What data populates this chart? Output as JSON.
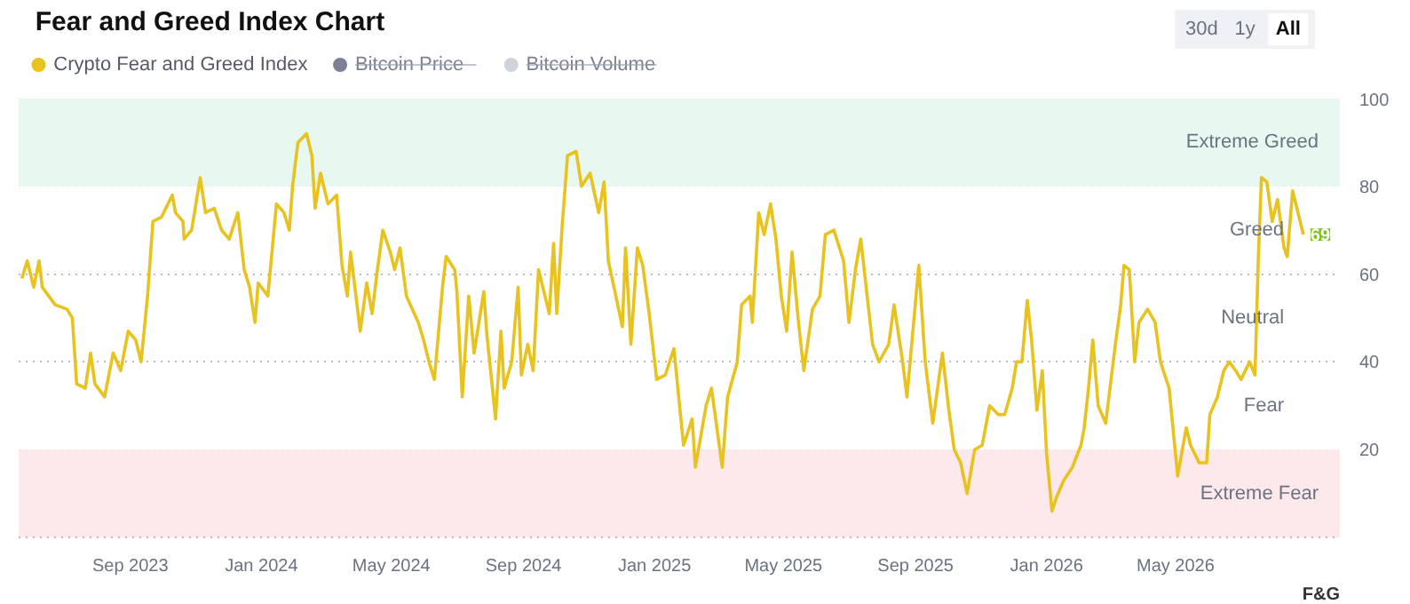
{
  "chart_data": {
    "type": "line",
    "title": "Fear and Greed Index Chart",
    "x": [
      "2023-05-23",
      "2023-05-28",
      "2023-06-03",
      "2023-06-08",
      "2023-06-11",
      "2023-06-23",
      "2023-07-04",
      "2023-07-09",
      "2023-07-13",
      "2023-07-21",
      "2023-07-26",
      "2023-07-30",
      "2023-08-08",
      "2023-08-16",
      "2023-08-23",
      "2023-08-30",
      "2023-09-06",
      "2023-09-11",
      "2023-09-17",
      "2023-09-22",
      "2023-09-30",
      "2023-10-10",
      "2023-10-13",
      "2023-10-20",
      "2023-10-21",
      "2023-10-28",
      "2023-11-05",
      "2023-11-10",
      "2023-11-18",
      "2023-11-25",
      "2023-12-02",
      "2023-12-10",
      "2023-12-16",
      "2023-12-21",
      "2023-12-26",
      "2023-12-29",
      "2024-01-07",
      "2024-01-15",
      "2024-01-22",
      "2024-01-27",
      "2024-01-30",
      "2024-02-04",
      "2024-02-12",
      "2024-02-17",
      "2024-02-20",
      "2024-02-25",
      "2024-03-03",
      "2024-03-11",
      "2024-03-16",
      "2024-03-21",
      "2024-03-24",
      "2024-04-02",
      "2024-04-08",
      "2024-04-13",
      "2024-04-18",
      "2024-04-23",
      "2024-04-30",
      "2024-05-04",
      "2024-05-09",
      "2024-05-15",
      "2024-05-26",
      "2024-05-31",
      "2024-06-05",
      "2024-06-10",
      "2024-06-18",
      "2024-06-21",
      "2024-06-29",
      "2024-07-01",
      "2024-07-06",
      "2024-07-12",
      "2024-07-17",
      "2024-07-26",
      "2024-07-29",
      "2024-08-06",
      "2024-08-11",
      "2024-08-14",
      "2024-08-21",
      "2024-08-27",
      "2024-08-30",
      "2024-09-05",
      "2024-09-10",
      "2024-09-15",
      "2024-09-25",
      "2024-09-29",
      "2024-10-02",
      "2024-10-07",
      "2024-10-12",
      "2024-10-20",
      "2024-10-25",
      "2024-11-02",
      "2024-11-10",
      "2024-11-15",
      "2024-11-19",
      "2024-11-26",
      "2024-12-02",
      "2024-12-05",
      "2024-12-10",
      "2024-12-16",
      "2024-12-21",
      "2024-12-27",
      "2025-01-03",
      "2025-01-11",
      "2025-01-19",
      "2025-01-28",
      "2025-02-05",
      "2025-02-08",
      "2025-02-18",
      "2025-02-23",
      "2025-02-28",
      "2025-03-05",
      "2025-03-10",
      "2025-03-19",
      "2025-03-23",
      "2025-03-31",
      "2025-04-02",
      "2025-04-08",
      "2025-04-13",
      "2025-04-19",
      "2025-04-24",
      "2025-04-29",
      "2025-05-04",
      "2025-05-09",
      "2025-05-15",
      "2025-05-20",
      "2025-05-28",
      "2025-06-04",
      "2025-06-09",
      "2025-06-17",
      "2025-06-26",
      "2025-07-01",
      "2025-07-07",
      "2025-07-12",
      "2025-07-17",
      "2025-07-23",
      "2025-07-29",
      "2025-08-07",
      "2025-08-12",
      "2025-08-20",
      "2025-08-24",
      "2025-09-04",
      "2025-09-10",
      "2025-09-17",
      "2025-09-26",
      "2025-10-02",
      "2025-10-07",
      "2025-10-13",
      "2025-10-19",
      "2025-10-26",
      "2025-11-02",
      "2025-11-09",
      "2025-11-17",
      "2025-11-23",
      "2025-11-30",
      "2025-12-04",
      "2025-12-09",
      "2025-12-14",
      "2025-12-18",
      "2025-12-23",
      "2025-12-28",
      "2026-01-01",
      "2026-01-06",
      "2026-01-10",
      "2026-01-17",
      "2026-01-25",
      "2026-02-02",
      "2026-02-05",
      "2026-02-09",
      "2026-02-13",
      "2026-02-18",
      "2026-02-25",
      "2026-03-01",
      "2026-03-06",
      "2026-03-11",
      "2026-03-14",
      "2026-03-19",
      "2026-03-24",
      "2026-03-28",
      "2026-04-05",
      "2026-04-12",
      "2026-04-17",
      "2026-04-25",
      "2026-05-03",
      "2026-05-11",
      "2026-05-15",
      "2026-05-23",
      "2026-05-30",
      "2026-06-02",
      "2026-06-09",
      "2026-06-15",
      "2026-06-20",
      "2026-06-26",
      "2026-07-01",
      "2026-07-09",
      "2026-07-14",
      "2026-07-17",
      "2026-07-20",
      "2026-07-25",
      "2026-07-30",
      "2026-08-04",
      "2026-08-10",
      "2026-08-13",
      "2026-08-18",
      "2026-08-23",
      "2026-08-28"
    ],
    "series": [
      {
        "name": "Crypto Fear and Greed Index",
        "color": "#e8c31f",
        "values": [
          59,
          63,
          57,
          63,
          57,
          53,
          52,
          50,
          35,
          34,
          42,
          35,
          32,
          42,
          38,
          47,
          45,
          40,
          55,
          72,
          73,
          78,
          74,
          72,
          68,
          70,
          82,
          74,
          75,
          70,
          68,
          74,
          61,
          57,
          49,
          58,
          55,
          76,
          74,
          70,
          80,
          90,
          92,
          87,
          75,
          83,
          76,
          78,
          62,
          55,
          65,
          47,
          58,
          51,
          61,
          70,
          65,
          61,
          66,
          55,
          49,
          45,
          40,
          36,
          58,
          64,
          61,
          56,
          32,
          55,
          42,
          56,
          46,
          27,
          47,
          34,
          40,
          57,
          37,
          44,
          38,
          61,
          51,
          67,
          51,
          71,
          87,
          88,
          80,
          83,
          74,
          81,
          63,
          55,
          48,
          66,
          44,
          66,
          62,
          51,
          36,
          37,
          43,
          21,
          27,
          16,
          30,
          34,
          25,
          16,
          32,
          40,
          53,
          55,
          49,
          74,
          69,
          76,
          68,
          55,
          47,
          65,
          49,
          38,
          52,
          55,
          69,
          70,
          63,
          49,
          61,
          68,
          57,
          44,
          40,
          44,
          53,
          40,
          32,
          62,
          40,
          26,
          42,
          29,
          20,
          17,
          10,
          20,
          21,
          30,
          28,
          28,
          34,
          40,
          40,
          54,
          45,
          29,
          38,
          19,
          6,
          9,
          13,
          16,
          21,
          25,
          34,
          45,
          30,
          26,
          34,
          44,
          53,
          62,
          61,
          40,
          49,
          52,
          49,
          40,
          34,
          14,
          25,
          21,
          17,
          17,
          28,
          32,
          38,
          40,
          38,
          36,
          40,
          37,
          63,
          82,
          81,
          72,
          77,
          66,
          64,
          79,
          74,
          69
        ]
      },
      {
        "name": "Bitcoin Price",
        "color": "#7c8196",
        "values": [
          null,
          null,
          null,
          null,
          null,
          null,
          null,
          null,
          null,
          null,
          null,
          null,
          null,
          null,
          null,
          null,
          null,
          null,
          null,
          null,
          null,
          null,
          null,
          null,
          null,
          null,
          null,
          null,
          null,
          null,
          null,
          null,
          null,
          null,
          null,
          null,
          null,
          null,
          null,
          null,
          null,
          null,
          null,
          null,
          null,
          null,
          null,
          null,
          null,
          null,
          null,
          null,
          null,
          null,
          null,
          null,
          null,
          null,
          null,
          null,
          null,
          null,
          null,
          null,
          null,
          null,
          null,
          null,
          null,
          null,
          null,
          null,
          null,
          null,
          null,
          null,
          null,
          null,
          null,
          null,
          null,
          null,
          null,
          null,
          null,
          null,
          null,
          null,
          null,
          null,
          null,
          null,
          null,
          null,
          null,
          null,
          null,
          null,
          null,
          null,
          null,
          null,
          null,
          null,
          null,
          null,
          null,
          null,
          null,
          null,
          null,
          null,
          null,
          null,
          null,
          null,
          null,
          null,
          null,
          null,
          null,
          null,
          null,
          null,
          null,
          null,
          null,
          null,
          null,
          null,
          null,
          null,
          null,
          null,
          null,
          null,
          null,
          null,
          null,
          null,
          null,
          null,
          null,
          null,
          null,
          null,
          null,
          null,
          null,
          null,
          null,
          null,
          null,
          null,
          null,
          null,
          null,
          null,
          null,
          null,
          null,
          null,
          null,
          null,
          null,
          null,
          null,
          null,
          null,
          null,
          null,
          null,
          null,
          null,
          null,
          null,
          null,
          null,
          null,
          null,
          null,
          null,
          null,
          null,
          null,
          null,
          null,
          null,
          null,
          null,
          null,
          null,
          null,
          null,
          null,
          null,
          null,
          null,
          null,
          null,
          null,
          null,
          null,
          null
        ]
      },
      {
        "name": "Bitcoin Volume",
        "color": "#cfd3dc",
        "values": [
          null,
          null,
          null,
          null,
          null,
          null,
          null,
          null,
          null,
          null,
          null,
          null,
          null,
          null,
          null,
          null,
          null,
          null,
          null,
          null,
          null,
          null,
          null,
          null,
          null,
          null,
          null,
          null,
          null,
          null,
          null,
          null,
          null,
          null,
          null,
          null,
          null,
          null,
          null,
          null,
          null,
          null,
          null,
          null,
          null,
          null,
          null,
          null,
          null,
          null,
          null,
          null,
          null,
          null,
          null,
          null,
          null,
          null,
          null,
          null,
          null,
          null,
          null,
          null,
          null,
          null,
          null,
          null,
          null,
          null,
          null,
          null,
          null,
          null,
          null,
          null,
          null,
          null,
          null,
          null,
          null,
          null,
          null,
          null,
          null,
          null,
          null,
          null,
          null,
          null,
          null,
          null,
          null,
          null,
          null,
          null,
          null,
          null,
          null,
          null,
          null,
          null,
          null,
          null,
          null,
          null,
          null,
          null,
          null,
          null,
          null,
          null,
          null,
          null,
          null,
          null,
          null,
          null,
          null,
          null,
          null,
          null,
          null,
          null,
          null,
          null,
          null,
          null,
          null,
          null,
          null,
          null,
          null,
          null,
          null,
          null,
          null,
          null,
          null,
          null,
          null,
          null,
          null,
          null,
          null,
          null,
          null,
          null,
          null,
          null,
          null,
          null,
          null,
          null,
          null,
          null,
          null,
          null,
          null,
          null,
          null,
          null,
          null,
          null,
          null,
          null,
          null,
          null,
          null,
          null,
          null,
          null,
          null,
          null,
          null,
          null,
          null,
          null,
          null,
          null,
          null,
          null,
          null,
          null,
          null,
          null,
          null,
          null,
          null,
          null,
          null,
          null,
          null,
          null,
          null,
          null,
          null,
          null,
          null,
          null,
          null,
          null,
          null,
          null
        ]
      }
    ],
    "xlim": [
      "2023-05-20",
      "2026-10-01"
    ],
    "xticks": [
      {
        "value": "2023-09",
        "label": "Sep 2023"
      },
      {
        "value": "2024-01",
        "label": "Jan 2024"
      },
      {
        "value": "2024-05",
        "label": "May 2024"
      },
      {
        "value": "2024-09",
        "label": "Sep 2024"
      },
      {
        "value": "2025-01",
        "label": "Jan 2025"
      },
      {
        "value": "2025-05",
        "label": "May 2025"
      },
      {
        "value": "2025-09",
        "label": "Sep 2025"
      },
      {
        "value": "2026-01",
        "label": "Jan 2026"
      },
      {
        "value": "2026-05",
        "label": "May 2026"
      }
    ],
    "ylim": [
      0,
      100
    ],
    "yticks": [
      20,
      40,
      60,
      80,
      100
    ],
    "bands": [
      {
        "axis": "y",
        "from": 80,
        "to": 100,
        "label": "Extreme Greed",
        "color": "#e6f8ef"
      },
      {
        "axis": "y",
        "from": 0,
        "to": 20,
        "label": "Extreme Fear",
        "color": "#fde9ec"
      }
    ],
    "annotations": [
      "30d",
      "1y",
      "All",
      "Greed",
      "Neutral",
      "Fear",
      "F&G",
      {
        "text": "69",
        "x": "2026-08-28",
        "y": 69
      }
    ],
    "grid": "y",
    "legend": "top left",
    "marker": "none",
    "line_style": "solid"
  }
}
